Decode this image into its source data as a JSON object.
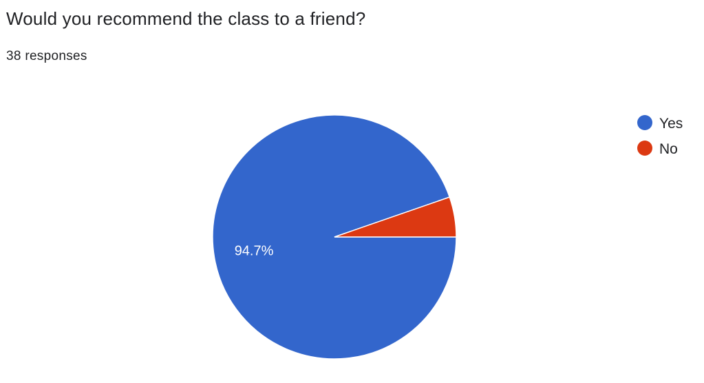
{
  "header": {
    "title": "Would you recommend the class to a friend?",
    "responses": "38 responses"
  },
  "chart_data": {
    "type": "pie",
    "categories": [
      "Yes",
      "No"
    ],
    "values": [
      94.7,
      5.3
    ],
    "colors": [
      "#3366cc",
      "#dc3912"
    ],
    "data_labels": [
      "94.7%",
      ""
    ],
    "legend_position": "right"
  }
}
